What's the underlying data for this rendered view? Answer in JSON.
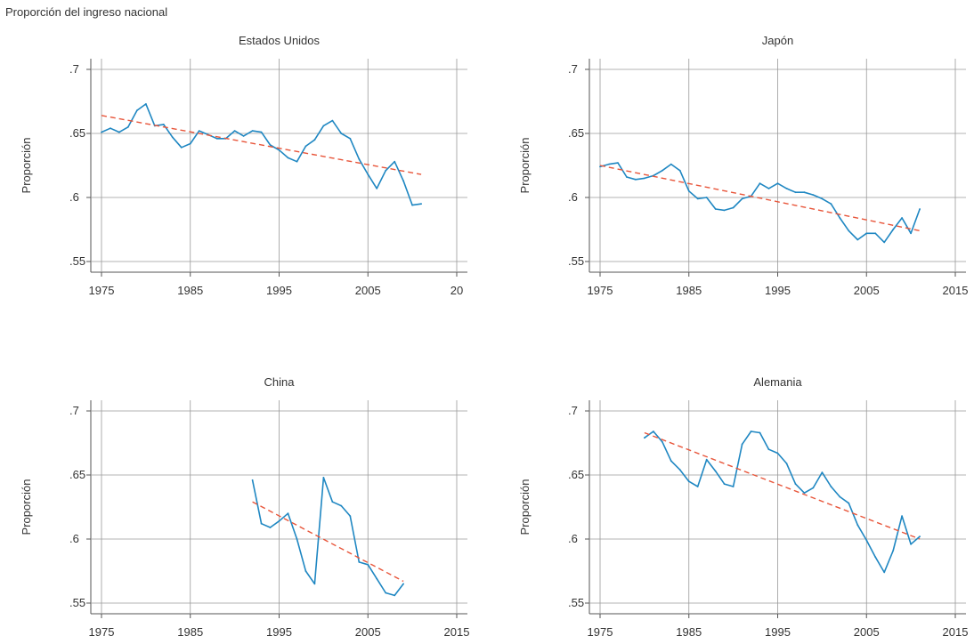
{
  "figure": {
    "title": "Proporción del ingreso nacional"
  },
  "colors": {
    "series": "#1f87c2",
    "trend": "#e8553a",
    "grid": "#9a9a9a"
  },
  "chart_data": [
    {
      "type": "line",
      "title": "Estados Unidos",
      "ylabel": "Proporción",
      "xlabel": "",
      "xlim": [
        1975,
        2015
      ],
      "ylim": [
        0.55,
        0.7
      ],
      "xticks": [
        "1975",
        "1985",
        "1995",
        "2005",
        "20"
      ],
      "yticks": [
        ".7",
        ".65",
        ".6",
        ".55"
      ],
      "grid": true,
      "series": [
        {
          "role": "actual",
          "x": [
            1975,
            1976,
            1977,
            1978,
            1979,
            1980,
            1981,
            1982,
            1983,
            1984,
            1985,
            1986,
            1987,
            1988,
            1989,
            1990,
            1991,
            1992,
            1993,
            1994,
            1995,
            1996,
            1997,
            1998,
            1999,
            2000,
            2001,
            2002,
            2003,
            2004,
            2005,
            2006,
            2007,
            2008,
            2009,
            2010,
            2011
          ],
          "y": [
            0.651,
            0.654,
            0.651,
            0.655,
            0.668,
            0.673,
            0.656,
            0.657,
            0.647,
            0.639,
            0.642,
            0.652,
            0.649,
            0.646,
            0.646,
            0.652,
            0.648,
            0.652,
            0.651,
            0.641,
            0.637,
            0.631,
            0.628,
            0.64,
            0.645,
            0.656,
            0.66,
            0.65,
            0.646,
            0.63,
            0.618,
            0.607,
            0.621,
            0.628,
            0.613,
            0.594,
            0.595
          ]
        },
        {
          "role": "trend",
          "x": [
            1975,
            2011
          ],
          "y": [
            0.664,
            0.618
          ]
        }
      ]
    },
    {
      "type": "line",
      "title": "Japón",
      "ylabel": "Proporción",
      "xlabel": "",
      "xlim": [
        1975,
        2015
      ],
      "ylim": [
        0.55,
        0.7
      ],
      "xticks": [
        "1975",
        "1985",
        "1995",
        "2005",
        "2015"
      ],
      "yticks": [
        ".7",
        ".65",
        ".6",
        ".55"
      ],
      "grid": true,
      "series": [
        {
          "role": "actual",
          "x": [
            1975,
            1976,
            1977,
            1978,
            1979,
            1980,
            1981,
            1982,
            1983,
            1984,
            1985,
            1986,
            1987,
            1988,
            1989,
            1990,
            1991,
            1992,
            1993,
            1994,
            1995,
            1996,
            1997,
            1998,
            1999,
            2000,
            2001,
            2002,
            2003,
            2004,
            2005,
            2006,
            2007,
            2008,
            2009,
            2010,
            2011
          ],
          "y": [
            0.624,
            0.626,
            0.627,
            0.616,
            0.614,
            0.615,
            0.617,
            0.621,
            0.626,
            0.621,
            0.605,
            0.599,
            0.6,
            0.591,
            0.59,
            0.592,
            0.599,
            0.601,
            0.611,
            0.607,
            0.611,
            0.607,
            0.604,
            0.604,
            0.602,
            0.599,
            0.595,
            0.584,
            0.574,
            0.567,
            0.572,
            0.572,
            0.565,
            0.575,
            0.584,
            0.572,
            0.591
          ]
        },
        {
          "role": "trend",
          "x": [
            1975,
            2011
          ],
          "y": [
            0.625,
            0.574
          ]
        }
      ]
    },
    {
      "type": "line",
      "title": "China",
      "ylabel": "Proporción",
      "xlabel": "",
      "xlim": [
        1975,
        2015
      ],
      "ylim": [
        0.55,
        0.7
      ],
      "xticks": [
        "1975",
        "1985",
        "1995",
        "2005",
        "2015"
      ],
      "yticks": [
        ".7",
        ".65",
        ".6",
        ".55"
      ],
      "grid": true,
      "series": [
        {
          "role": "actual",
          "x": [
            1992,
            1993,
            1994,
            1995,
            1996,
            1997,
            1998,
            1999,
            2000,
            2001,
            2002,
            2003,
            2004,
            2005,
            2006,
            2007,
            2008,
            2009
          ],
          "y": [
            0.646,
            0.612,
            0.609,
            0.614,
            0.62,
            0.6,
            0.575,
            0.565,
            0.648,
            0.629,
            0.626,
            0.618,
            0.582,
            0.58,
            0.569,
            0.558,
            0.556,
            0.565
          ]
        },
        {
          "role": "trend",
          "x": [
            1992,
            2009
          ],
          "y": [
            0.629,
            0.567
          ]
        }
      ]
    },
    {
      "type": "line",
      "title": "Alemania",
      "ylabel": "Proporción",
      "xlabel": "",
      "xlim": [
        1975,
        2015
      ],
      "ylim": [
        0.55,
        0.7
      ],
      "xticks": [
        "1975",
        "1985",
        "1995",
        "2005",
        "2015"
      ],
      "yticks": [
        ".7",
        ".65",
        ".6",
        ".55"
      ],
      "grid": true,
      "series": [
        {
          "role": "actual",
          "x": [
            1980,
            1981,
            1982,
            1983,
            1984,
            1985,
            1986,
            1987,
            1988,
            1989,
            1990,
            1991,
            1992,
            1993,
            1994,
            1995,
            1996,
            1997,
            1998,
            1999,
            2000,
            2001,
            2002,
            2003,
            2004,
            2005,
            2006,
            2007,
            2008,
            2009,
            2010,
            2011
          ],
          "y": [
            0.679,
            0.684,
            0.676,
            0.661,
            0.654,
            0.645,
            0.641,
            0.662,
            0.653,
            0.643,
            0.641,
            0.674,
            0.684,
            0.683,
            0.67,
            0.667,
            0.659,
            0.643,
            0.636,
            0.64,
            0.652,
            0.641,
            0.633,
            0.628,
            0.611,
            0.599,
            0.586,
            0.574,
            0.591,
            0.618,
            0.596,
            0.602
          ]
        },
        {
          "role": "trend",
          "x": [
            1980,
            2011
          ],
          "y": [
            0.683,
            0.6
          ]
        }
      ]
    }
  ]
}
